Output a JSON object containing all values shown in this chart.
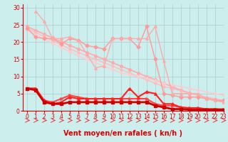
{
  "title": "",
  "xlabel": "Vent moyen/en rafales ( kn/h )",
  "ylabel": "",
  "bg_color": "#cceeed",
  "grid_color": "#aacccc",
  "xlim": [
    -0.5,
    23
  ],
  "ylim": [
    0,
    31
  ],
  "yticks": [
    0,
    5,
    10,
    15,
    20,
    25,
    30
  ],
  "xticks": [
    0,
    1,
    2,
    3,
    4,
    5,
    6,
    7,
    8,
    9,
    10,
    11,
    12,
    13,
    14,
    15,
    16,
    17,
    18,
    19,
    20,
    21,
    22,
    23
  ],
  "lines": [
    {
      "x": [
        0,
        1,
        2,
        3,
        4,
        5,
        6,
        7,
        8,
        9,
        10,
        11,
        12,
        13,
        14,
        15,
        16,
        17,
        18,
        19,
        20,
        21,
        22,
        23
      ],
      "y": [
        24.5,
        23.4,
        22.3,
        21.2,
        20.1,
        19.0,
        18.0,
        17.0,
        16.0,
        15.0,
        14.0,
        13.0,
        12.0,
        11.0,
        10.0,
        9.0,
        8.0,
        7.0,
        6.0,
        5.2,
        4.5,
        3.8,
        3.2,
        2.5
      ],
      "color": "#ffaaaa",
      "lw": 1.2,
      "marker": "o",
      "ms": 2.5
    },
    {
      "x": [
        0,
        1,
        2,
        3,
        4,
        5,
        6,
        7,
        8,
        9,
        10,
        11,
        12,
        13,
        14,
        15,
        16,
        17,
        18,
        19,
        20,
        21,
        22,
        23
      ],
      "y": [
        24.0,
        22.8,
        21.6,
        20.4,
        19.2,
        18.0,
        17.0,
        16.0,
        15.0,
        14.0,
        13.0,
        12.0,
        11.0,
        10.0,
        9.0,
        8.0,
        7.0,
        6.5,
        5.8,
        5.0,
        4.5,
        4.0,
        3.5,
        3.0
      ],
      "color": "#ffbbbb",
      "lw": 1.0,
      "marker": "o",
      "ms": 2.0
    },
    {
      "x": [
        0,
        1,
        2,
        3,
        4,
        5,
        6,
        7,
        8,
        9,
        10,
        11,
        12,
        13,
        14,
        15,
        16,
        17,
        18,
        19,
        20,
        21,
        22,
        23
      ],
      "y": [
        23.5,
        22.2,
        20.9,
        19.6,
        18.4,
        17.2,
        16.0,
        15.0,
        14.0,
        13.0,
        12.0,
        11.0,
        10.5,
        10.0,
        9.5,
        8.8,
        8.0,
        7.5,
        7.0,
        6.5,
        6.0,
        5.5,
        5.0,
        4.5
      ],
      "color": "#ffcccc",
      "lw": 1.0,
      "marker": "o",
      "ms": 2.0
    },
    {
      "x": [
        0,
        1,
        2,
        3,
        4,
        5,
        6,
        7,
        8,
        9,
        10,
        11,
        12,
        13,
        14,
        15,
        16,
        17,
        18,
        19,
        20,
        21,
        22,
        23
      ],
      "y": [
        24.0,
        21.5,
        21.0,
        21.0,
        19.5,
        21.0,
        20.5,
        19.0,
        18.5,
        18.0,
        21.0,
        21.0,
        21.0,
        18.5,
        24.5,
        15.0,
        5.0,
        4.5,
        4.0,
        4.0,
        4.0,
        3.5,
        3.0,
        3.0
      ],
      "color": "#ff9999",
      "lw": 1.0,
      "marker": "D",
      "ms": 2.5
    },
    {
      "x": [
        1,
        2,
        3,
        4,
        5,
        6,
        7,
        8,
        9,
        10,
        11,
        12,
        13,
        14,
        15,
        16,
        17,
        18,
        19,
        20,
        21,
        22,
        23
      ],
      "y": [
        29.0,
        26.0,
        21.0,
        21.0,
        21.5,
        20.5,
        16.5,
        12.5,
        13.0,
        21.0,
        21.0,
        21.0,
        21.0,
        21.0,
        24.5,
        14.5,
        5.0,
        5.0,
        5.0,
        5.0,
        3.5,
        3.0,
        2.5
      ],
      "color": "#ffaaaa",
      "lw": 1.0,
      "marker": "^",
      "ms": 2.5
    },
    {
      "x": [
        0,
        1,
        2,
        3,
        4,
        5,
        6,
        7,
        8,
        9,
        10,
        11,
        12,
        13,
        14,
        15,
        16,
        17,
        18,
        19,
        20,
        21,
        22,
        23
      ],
      "y": [
        6.5,
        6.5,
        3.0,
        2.5,
        3.5,
        4.5,
        4.0,
        3.5,
        3.5,
        3.5,
        3.5,
        3.5,
        3.5,
        3.5,
        3.5,
        2.0,
        1.5,
        1.5,
        1.0,
        0.8,
        0.8,
        0.5,
        0.5,
        0.5
      ],
      "color": "#ff4444",
      "lw": 1.5,
      "marker": ">",
      "ms": 2.5
    },
    {
      "x": [
        0,
        1,
        2,
        3,
        4,
        5,
        6,
        7,
        8,
        9,
        10,
        11,
        12,
        13,
        14,
        15,
        16,
        17,
        18,
        19,
        20,
        21,
        22,
        23
      ],
      "y": [
        6.5,
        6.5,
        3.0,
        2.0,
        2.5,
        4.0,
        3.5,
        3.5,
        3.5,
        3.5,
        3.5,
        3.5,
        6.5,
        4.0,
        5.5,
        5.0,
        2.0,
        2.0,
        1.0,
        0.8,
        0.8,
        0.5,
        0.5,
        0.3
      ],
      "color": "#ff2222",
      "lw": 1.5,
      "marker": "^",
      "ms": 2.5
    },
    {
      "x": [
        0,
        1,
        2,
        3,
        4,
        5,
        6,
        7,
        8,
        9,
        10,
        11,
        12,
        13,
        14,
        15,
        16,
        17,
        18,
        19,
        20,
        21,
        22,
        23
      ],
      "y": [
        6.5,
        6.0,
        2.5,
        2.0,
        2.0,
        2.5,
        2.5,
        2.5,
        2.5,
        2.5,
        2.5,
        2.5,
        2.5,
        2.5,
        2.5,
        1.5,
        1.0,
        0.5,
        0.5,
        0.3,
        0.3,
        0.3,
        0.3,
        0.3
      ],
      "color": "#cc0000",
      "lw": 2.0,
      "marker": "s",
      "ms": 2.5
    }
  ],
  "tick_fontsize": 5.5,
  "label_fontsize": 7,
  "tick_color": "#dd0000",
  "label_color": "#dd0000"
}
